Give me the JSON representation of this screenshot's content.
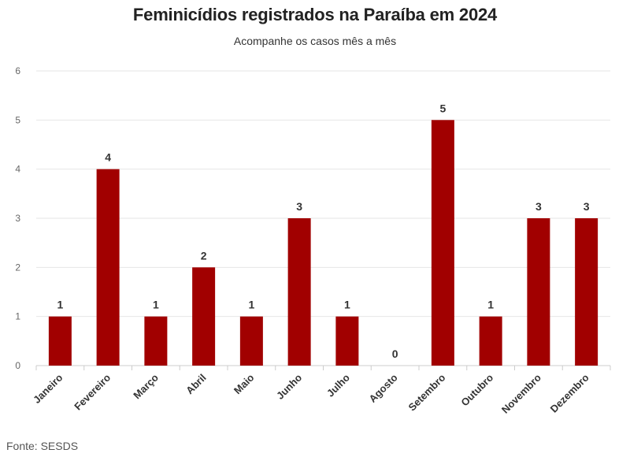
{
  "header": {
    "title": "Feminicídios registrados na Paraíba em 2024",
    "subtitle": "Acompanhe os casos mês a mês"
  },
  "footer": {
    "source": "Fonte: SESDS"
  },
  "colors": {
    "bar": "#a10000",
    "grid": "#e6e6e6"
  },
  "chart_data": {
    "type": "bar",
    "title": "Feminicídios registrados na Paraíba em 2024",
    "subtitle": "Acompanhe os casos mês a mês",
    "xlabel": "",
    "ylabel": "",
    "categories": [
      "Janeiro",
      "Fevereiro",
      "Março",
      "Abril",
      "Maio",
      "Junho",
      "Julho",
      "Agosto",
      "Setembro",
      "Outubro",
      "Novembro",
      "Dezembro"
    ],
    "values": [
      1,
      4,
      1,
      2,
      1,
      3,
      1,
      0,
      5,
      1,
      3,
      3
    ],
    "ylim": [
      0,
      6
    ],
    "yticks": [
      0,
      1,
      2,
      3,
      4,
      5,
      6
    ],
    "grid": true,
    "data_labels": true,
    "legend": "none"
  }
}
